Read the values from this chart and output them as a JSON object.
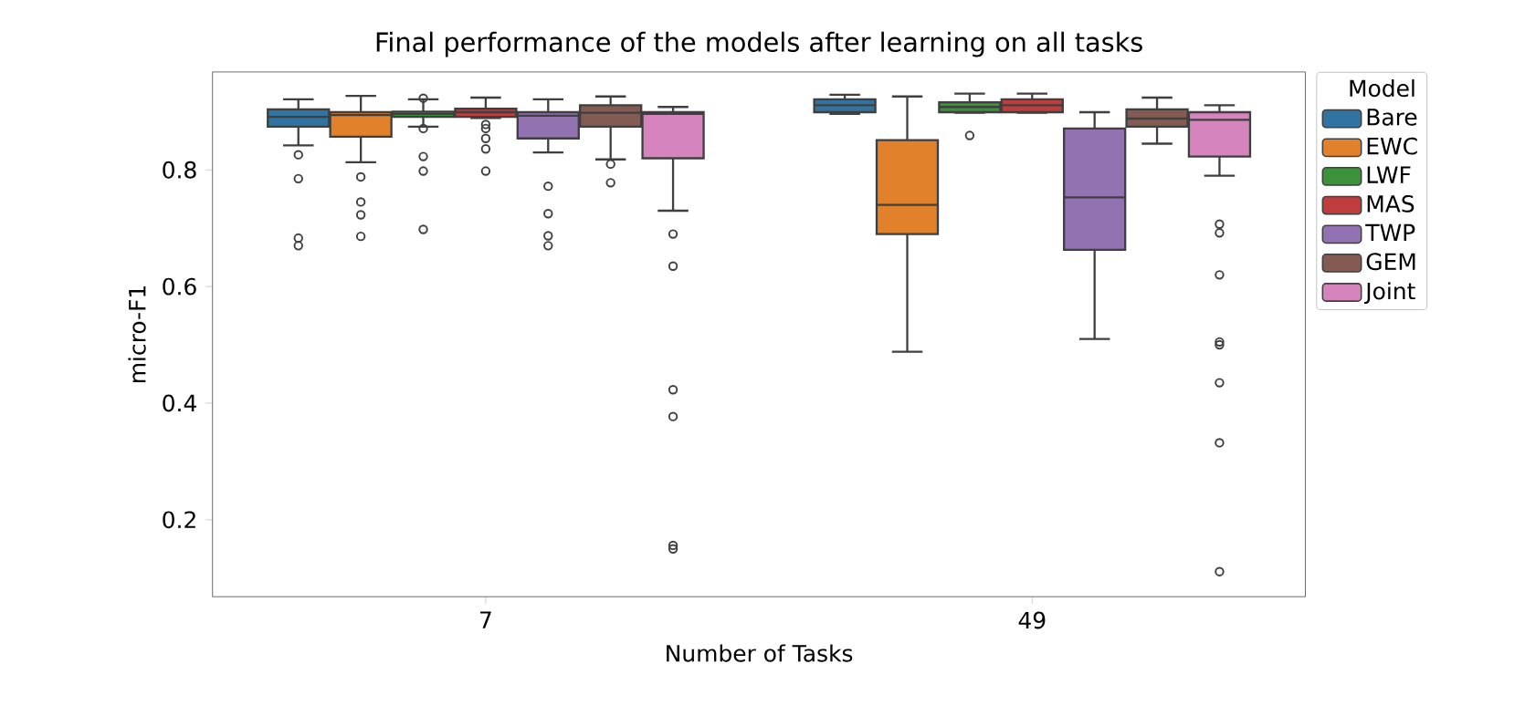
{
  "chart_data": {
    "type": "box",
    "title": "Final performance of the models after learning on all tasks",
    "xlabel": "Number of Tasks",
    "ylabel": "micro-F1",
    "legend_title": "Model",
    "categories": [
      "7",
      "49"
    ],
    "ylim": [
      0.068,
      0.968
    ],
    "yticks": [
      0.2,
      0.4,
      0.6,
      0.8
    ],
    "grid": false,
    "legend": "right",
    "marker": "circle",
    "series": [
      {
        "name": "Bare",
        "color": "#3274a1",
        "boxes": [
          {
            "low": 0.842,
            "q1": 0.874,
            "median": 0.891,
            "q3": 0.904,
            "high": 0.921,
            "outliers": [
              0.826,
              0.785,
              0.683,
              0.67
            ]
          },
          {
            "low": 0.896,
            "q1": 0.899,
            "median": 0.911,
            "q3": 0.921,
            "high": 0.929
          }
        ]
      },
      {
        "name": "EWC",
        "color": "#e1812c",
        "boxes": [
          {
            "low": 0.813,
            "q1": 0.857,
            "median": 0.894,
            "q3": 0.899,
            "high": 0.927,
            "outliers": [
              0.788,
              0.745,
              0.723,
              0.686
            ]
          },
          {
            "low": 0.488,
            "q1": 0.69,
            "median": 0.74,
            "q3": 0.851,
            "high": 0.926
          }
        ]
      },
      {
        "name": "LWF",
        "color": "#3a923a",
        "boxes": [
          {
            "low": 0.874,
            "q1": 0.891,
            "median": 0.896,
            "q3": 0.9,
            "high": 0.921,
            "outliers": [
              0.923,
              0.871,
              0.823,
              0.798,
              0.698
            ]
          },
          {
            "low": 0.898,
            "q1": 0.899,
            "median": 0.908,
            "q3": 0.916,
            "high": 0.931,
            "outliers": [
              0.859
            ]
          }
        ]
      },
      {
        "name": "MAS",
        "color": "#c03d3e",
        "boxes": [
          {
            "low": 0.889,
            "q1": 0.891,
            "median": 0.899,
            "q3": 0.905,
            "high": 0.924,
            "outliers": [
              0.878,
              0.871,
              0.854,
              0.836,
              0.798
            ]
          },
          {
            "low": 0.898,
            "q1": 0.899,
            "median": 0.911,
            "q3": 0.921,
            "high": 0.931
          }
        ]
      },
      {
        "name": "TWP",
        "color": "#9372b2",
        "boxes": [
          {
            "low": 0.83,
            "q1": 0.854,
            "median": 0.893,
            "q3": 0.899,
            "high": 0.921,
            "outliers": [
              0.772,
              0.725,
              0.687,
              0.67
            ]
          },
          {
            "low": 0.51,
            "q1": 0.663,
            "median": 0.753,
            "q3": 0.871,
            "high": 0.899
          }
        ]
      },
      {
        "name": "GEM",
        "color": "#845b53",
        "boxes": [
          {
            "low": 0.818,
            "q1": 0.874,
            "median": 0.898,
            "q3": 0.911,
            "high": 0.926,
            "outliers": [
              0.81,
              0.778
            ]
          },
          {
            "low": 0.845,
            "q1": 0.874,
            "median": 0.888,
            "q3": 0.904,
            "high": 0.924
          }
        ]
      },
      {
        "name": "Joint",
        "color": "#d684bd",
        "boxes": [
          {
            "low": 0.73,
            "q1": 0.82,
            "median": 0.896,
            "q3": 0.899,
            "high": 0.908,
            "outliers": [
              0.69,
              0.635,
              0.423,
              0.377,
              0.156,
              0.15
            ]
          },
          {
            "low": 0.79,
            "q1": 0.823,
            "median": 0.886,
            "q3": 0.899,
            "high": 0.911,
            "outliers": [
              0.707,
              0.692,
              0.62,
              0.505,
              0.5,
              0.435,
              0.332,
              0.111
            ]
          }
        ]
      }
    ]
  }
}
